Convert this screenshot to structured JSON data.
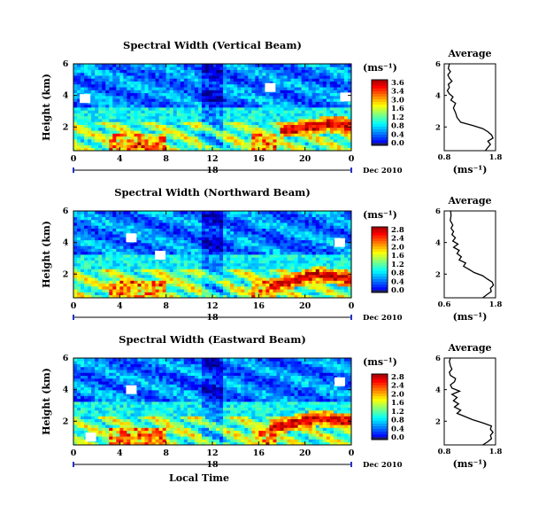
{
  "chart_data": [
    {
      "type": "heatmap",
      "title": "Spectral Width (Vertical Beam)",
      "ylabel": "Height (km)",
      "ylim": [
        0.5,
        6
      ],
      "yticks": [
        "2",
        "4",
        "6"
      ],
      "xlim": [
        0,
        24
      ],
      "xticks": [
        "0",
        "4",
        "8",
        "12",
        "16",
        "20",
        "0"
      ],
      "day_label": "18",
      "month_label": "Dec 2010",
      "unit_label": "(ms⁻¹)",
      "colorbar": {
        "min": 0.0,
        "max": 3.6,
        "ticks": [
          "3.6",
          "3.4",
          "3.0",
          "1.6",
          "1.2",
          "0.8",
          "0.4",
          "0.0"
        ]
      },
      "features": {
        "red_layer": [
          [
            18,
            1.8
          ],
          [
            20,
            2.0
          ],
          [
            22,
            2.2
          ],
          [
            24,
            2.1
          ]
        ],
        "white_gaps": [
          [
            23.5,
            3.9
          ],
          [
            1,
            3.8
          ],
          [
            17,
            4.5
          ]
        ]
      },
      "average": {
        "title": "Average",
        "xlabel": "(ms⁻¹)",
        "xlim": [
          0.8,
          1.8
        ],
        "xticks": [
          "0.8",
          "1.8"
        ],
        "ylim": [
          0.5,
          6
        ],
        "yticks": [
          "2",
          "4",
          "6"
        ],
        "profile": [
          [
            1.6,
            0.5
          ],
          [
            1.65,
            0.7
          ],
          [
            1.7,
            0.9
          ],
          [
            1.65,
            1.1
          ],
          [
            1.75,
            1.3
          ],
          [
            1.72,
            1.5
          ],
          [
            1.65,
            1.7
          ],
          [
            1.55,
            1.9
          ],
          [
            1.35,
            2.1
          ],
          [
            1.12,
            2.3
          ],
          [
            1.05,
            2.6
          ],
          [
            1.02,
            2.9
          ],
          [
            0.98,
            3.2
          ],
          [
            1.02,
            3.5
          ],
          [
            0.93,
            3.7
          ],
          [
            0.97,
            3.9
          ],
          [
            0.9,
            4.1
          ],
          [
            0.86,
            4.3
          ],
          [
            0.9,
            4.5
          ],
          [
            0.88,
            4.7
          ],
          [
            0.95,
            4.9
          ],
          [
            0.9,
            5.1
          ],
          [
            0.87,
            5.3
          ],
          [
            0.92,
            5.5
          ],
          [
            0.88,
            5.7
          ],
          [
            0.9,
            6.0
          ]
        ]
      }
    },
    {
      "type": "heatmap",
      "title": "Spectral Width (Northward Beam)",
      "ylabel": "Height (km)",
      "ylim": [
        0.5,
        6
      ],
      "yticks": [
        "2",
        "4",
        "6"
      ],
      "xlim": [
        0,
        24
      ],
      "xticks": [
        "0",
        "4",
        "8",
        "12",
        "16",
        "20",
        "0"
      ],
      "day_label": "18",
      "month_label": "Dec 2010",
      "unit_label": "(ms⁻¹)",
      "colorbar": {
        "min": 0.0,
        "max": 2.8,
        "ticks": [
          "2.8",
          "2.4",
          "2.0",
          "1.6",
          "1.2",
          "0.8",
          "0.4",
          "0.0"
        ]
      },
      "features": {
        "red_layer": [
          [
            17,
            1.2
          ],
          [
            19,
            1.6
          ],
          [
            21,
            2.0
          ],
          [
            24,
            1.7
          ]
        ],
        "white_gaps": [
          [
            7.5,
            3.2
          ],
          [
            5,
            4.3
          ],
          [
            23,
            4.0
          ]
        ]
      },
      "average": {
        "title": "Average",
        "xlabel": "(ms⁻¹)",
        "xlim": [
          0.6,
          1.8
        ],
        "xticks": [
          "0.6",
          "1.8"
        ],
        "ylim": [
          0.5,
          6
        ],
        "yticks": [
          "2",
          "4",
          "6"
        ],
        "profile": [
          [
            1.5,
            0.5
          ],
          [
            1.6,
            0.7
          ],
          [
            1.7,
            0.9
          ],
          [
            1.68,
            1.1
          ],
          [
            1.75,
            1.3
          ],
          [
            1.72,
            1.5
          ],
          [
            1.6,
            1.7
          ],
          [
            1.5,
            1.9
          ],
          [
            1.3,
            2.1
          ],
          [
            1.18,
            2.3
          ],
          [
            1.05,
            2.5
          ],
          [
            1.1,
            2.7
          ],
          [
            0.95,
            2.9
          ],
          [
            1.0,
            3.1
          ],
          [
            0.9,
            3.3
          ],
          [
            0.95,
            3.5
          ],
          [
            0.82,
            3.7
          ],
          [
            0.92,
            3.9
          ],
          [
            0.8,
            4.1
          ],
          [
            0.86,
            4.3
          ],
          [
            0.78,
            4.5
          ],
          [
            0.82,
            4.7
          ],
          [
            0.76,
            4.9
          ],
          [
            0.8,
            5.1
          ],
          [
            0.74,
            5.4
          ],
          [
            0.76,
            5.7
          ],
          [
            0.75,
            6.0
          ]
        ]
      }
    },
    {
      "type": "heatmap",
      "title": "Spectral Width (Eastward Beam)",
      "ylabel": "Height (km)",
      "ylim": [
        0.5,
        6
      ],
      "yticks": [
        "2",
        "4",
        "6"
      ],
      "xlim": [
        0,
        24
      ],
      "xticks": [
        "0",
        "4",
        "8",
        "12",
        "16",
        "20",
        "0"
      ],
      "day_label": "18",
      "month_label": "Dec 2010",
      "unit_label": "(ms⁻¹)",
      "xlabel": "Local Time",
      "colorbar": {
        "min": 0.0,
        "max": 2.8,
        "ticks": [
          "2.8",
          "2.4",
          "2.0",
          "1.6",
          "1.2",
          "0.8",
          "0.4",
          "0.0"
        ]
      },
      "features": {
        "red_layer": [
          [
            17,
            1.6
          ],
          [
            19,
            1.9
          ],
          [
            21,
            2.2
          ],
          [
            24,
            2.0
          ]
        ],
        "white_gaps": [
          [
            23,
            4.5
          ],
          [
            1.5,
            1.0
          ],
          [
            5,
            4.0
          ]
        ]
      },
      "average": {
        "title": "Average",
        "xlabel": "(ms⁻¹)",
        "xlim": [
          0.8,
          1.8
        ],
        "xticks": [
          "0.8",
          "1.8"
        ],
        "ylim": [
          0.5,
          6
        ],
        "yticks": [
          "2",
          "4",
          "6"
        ],
        "profile": [
          [
            1.55,
            0.5
          ],
          [
            1.65,
            0.7
          ],
          [
            1.72,
            0.9
          ],
          [
            1.7,
            1.1
          ],
          [
            1.75,
            1.3
          ],
          [
            1.7,
            1.5
          ],
          [
            1.72,
            1.7
          ],
          [
            1.55,
            1.9
          ],
          [
            1.35,
            2.1
          ],
          [
            1.2,
            2.3
          ],
          [
            1.05,
            2.5
          ],
          [
            1.12,
            2.7
          ],
          [
            1.0,
            2.9
          ],
          [
            1.08,
            3.1
          ],
          [
            0.98,
            3.3
          ],
          [
            1.05,
            3.5
          ],
          [
            0.95,
            3.7
          ],
          [
            1.1,
            3.9
          ],
          [
            0.95,
            4.1
          ],
          [
            0.92,
            4.3
          ],
          [
            1.0,
            4.5
          ],
          [
            1.02,
            4.7
          ],
          [
            0.92,
            4.9
          ],
          [
            0.9,
            5.1
          ],
          [
            0.95,
            5.3
          ],
          [
            0.92,
            5.5
          ],
          [
            0.9,
            5.8
          ],
          [
            0.92,
            6.0
          ]
        ]
      }
    }
  ]
}
